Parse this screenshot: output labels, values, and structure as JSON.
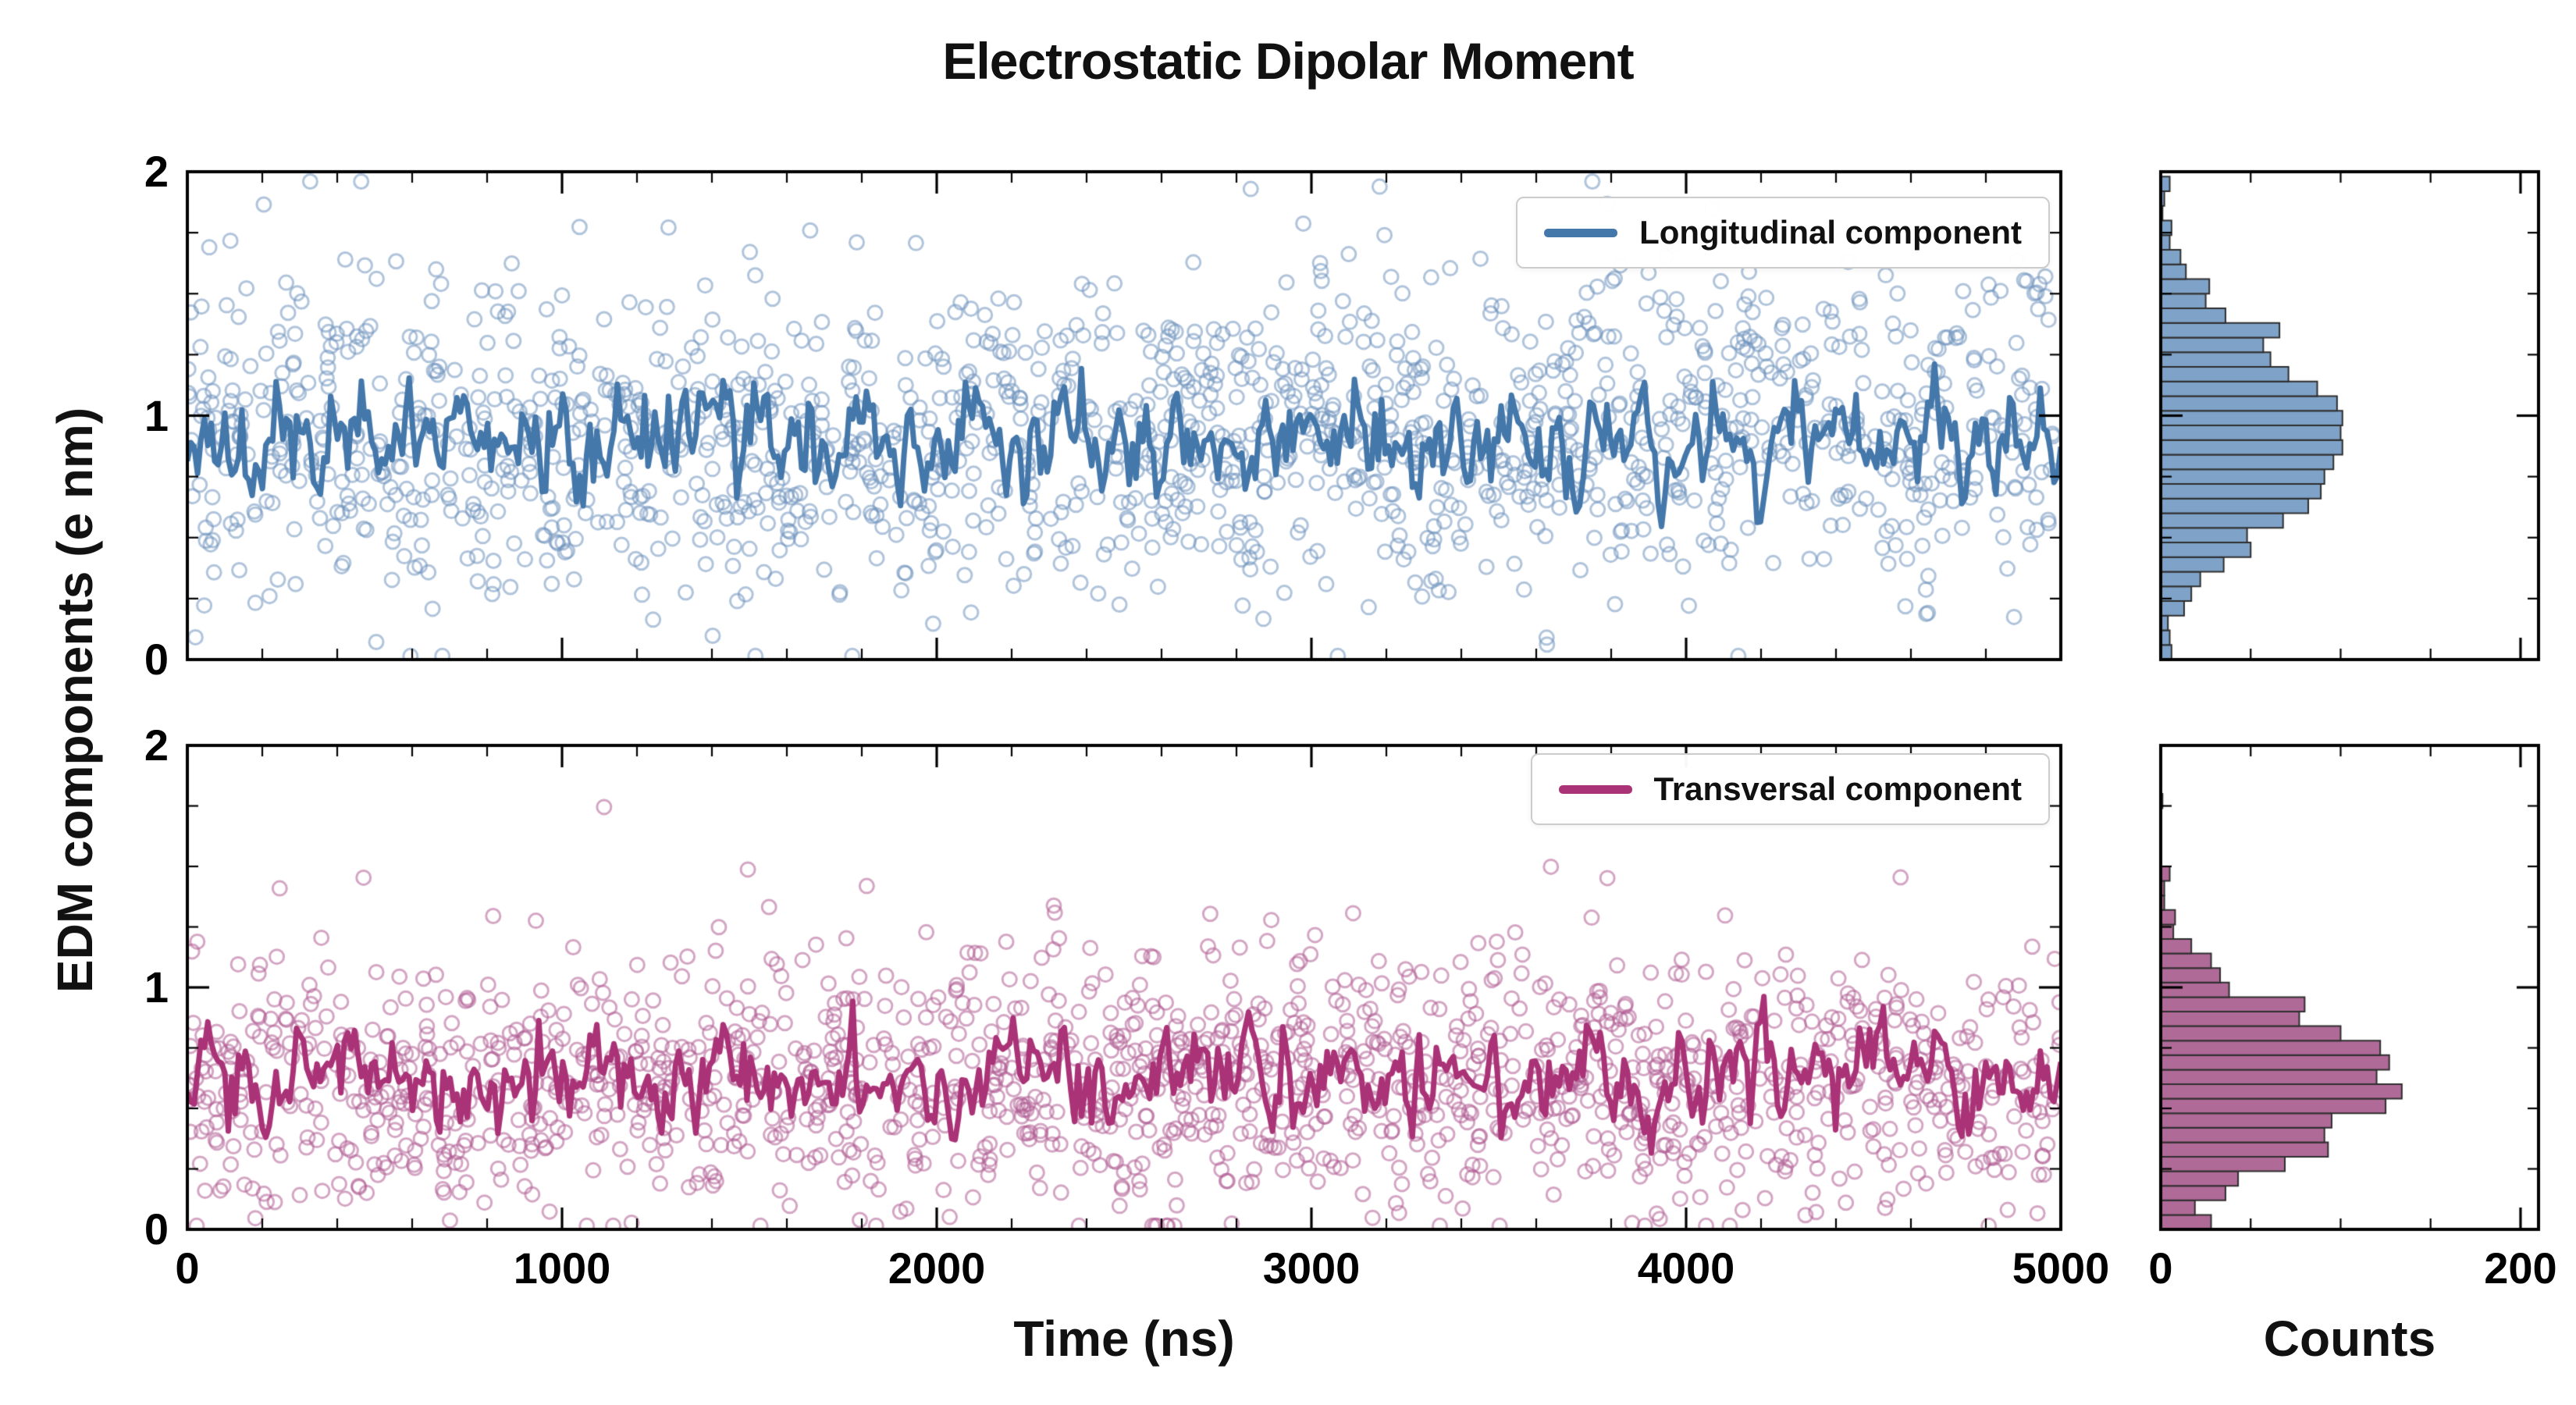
{
  "figure": {
    "title": "Electrostatic Dipolar Moment",
    "ylabel": "EDM components (e nm)",
    "xlabel_main": "Time (ns)",
    "xlabel_hist": "Counts",
    "background": "#ffffff",
    "axis_color": "#000000"
  },
  "chart_data": [
    {
      "id": "longitudinal-timeseries",
      "type": "scatter",
      "legend": "Longitudinal component",
      "legend_position": "upper right",
      "grid": false,
      "x_range": [
        0,
        5000
      ],
      "x_ticks": [
        0,
        1000,
        2000,
        3000,
        4000,
        5000
      ],
      "x_minor_step": 200,
      "y_range": [
        0,
        2
      ],
      "y_ticks": [
        0,
        1,
        2
      ],
      "y_minor_step": 0.25,
      "n_points": 1500,
      "mean": 0.92,
      "std": 0.33,
      "running_avg": {
        "name": "running average line",
        "mean": 0.9,
        "std": 0.12,
        "points": 550
      },
      "colors": {
        "line": "#4477aa",
        "marker": "#6f94bd"
      },
      "seed": 7
    },
    {
      "id": "longitudinal-histogram",
      "type": "histogram",
      "orientation": "horizontal",
      "source": "longitudinal-timeseries",
      "x_range": [
        0,
        210
      ],
      "x_ticks": [
        0,
        200
      ],
      "x_minor_step": 50,
      "y_range": [
        0,
        2
      ],
      "y_ticks": [
        0,
        1,
        2
      ],
      "y_minor_step": 0.25,
      "bin_width": 0.06,
      "approx_peak_count": 105,
      "peak_at": 0.92,
      "colors": {
        "fill": "#7fa3c8",
        "edge": "#2e2e2e"
      }
    },
    {
      "id": "transversal-timeseries",
      "type": "scatter",
      "legend": "Transversal component",
      "legend_position": "upper right",
      "grid": false,
      "x_range": [
        0,
        5000
      ],
      "x_ticks": [
        0,
        1000,
        2000,
        3000,
        4000,
        5000
      ],
      "x_minor_step": 200,
      "y_range": [
        0,
        2
      ],
      "y_ticks": [
        0,
        1,
        2
      ],
      "y_minor_step": 0.25,
      "n_points": 1500,
      "mean": 0.62,
      "std": 0.27,
      "running_avg": {
        "name": "running average line",
        "mean": 0.63,
        "std": 0.11,
        "points": 550
      },
      "colors": {
        "line": "#aa3377",
        "marker": "#b15d94"
      },
      "seed": 21
    },
    {
      "id": "transversal-histogram",
      "type": "histogram",
      "orientation": "horizontal",
      "source": "transversal-timeseries",
      "x_range": [
        0,
        210
      ],
      "x_ticks": [
        0,
        200
      ],
      "x_minor_step": 50,
      "y_range": [
        0,
        2
      ],
      "y_ticks": [
        0,
        1,
        2
      ],
      "y_minor_step": 0.25,
      "bin_width": 0.06,
      "approx_peak_count": 130,
      "peak_at": 0.62,
      "colors": {
        "fill": "#b06a98",
        "edge": "#2e2e2e"
      }
    }
  ]
}
